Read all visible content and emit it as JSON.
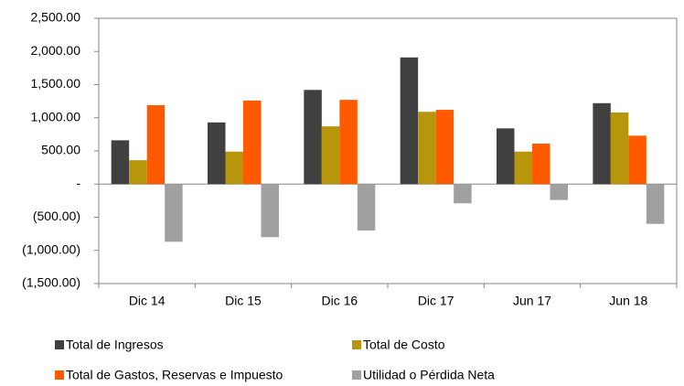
{
  "chart_data": {
    "type": "bar",
    "categories": [
      "Dic 14",
      "Dic 15",
      "Dic 16",
      "Dic 17",
      "Jun 17",
      "Jun 18"
    ],
    "series": [
      {
        "name": "Total de Ingresos",
        "color": "#404040",
        "values": [
          660,
          930,
          1420,
          1910,
          840,
          1220
        ]
      },
      {
        "name": "Total de Costo",
        "color": "#b8960c",
        "values": [
          360,
          490,
          870,
          1090,
          490,
          1080
        ]
      },
      {
        "name": "Total de Gastos, Reservas e Impuesto",
        "color": "#ff5a00",
        "values": [
          1190,
          1260,
          1270,
          1120,
          610,
          730
        ]
      },
      {
        "name": "Utilidad o Pérdida Neta",
        "color": "#a0a0a0",
        "values": [
          -870,
          -800,
          -700,
          -290,
          -240,
          -600
        ]
      }
    ],
    "ylim": [
      -1500,
      2500
    ],
    "yticks": [
      {
        "value": -1500,
        "label": "(1,500.00)"
      },
      {
        "value": -1000,
        "label": "(1,000.00)"
      },
      {
        "value": -500,
        "label": "(500.00)"
      },
      {
        "value": 0,
        "label": "-"
      },
      {
        "value": 500,
        "label": "500.00"
      },
      {
        "value": 1000,
        "label": "1,000.00"
      },
      {
        "value": 1500,
        "label": "1,500.00"
      },
      {
        "value": 2000,
        "label": "2,000.00"
      },
      {
        "value": 2500,
        "label": "2,500.00"
      }
    ],
    "grid": false,
    "legend": "bottom"
  }
}
